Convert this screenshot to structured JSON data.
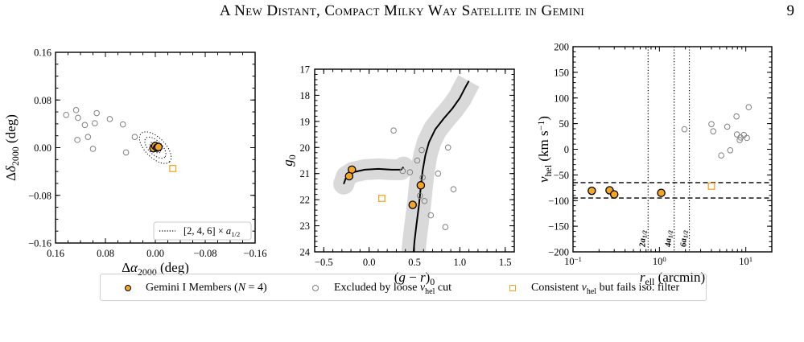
{
  "header": {
    "running_title": "A New Distant, Compact Milky Way Satellite in Gemini",
    "page_number": "9"
  },
  "colors": {
    "member_fill": "#f5a623",
    "member_edge": "#000000",
    "excluded_edge": "#808080",
    "consistent_edge": "#f5a623",
    "isochrone": "#000000",
    "isochrone_band": "#d9d9d9"
  },
  "legend": {
    "members": "Gemini I Members (N = 4)",
    "excluded": "Excluded by loose v_hel cut",
    "consistent": "Consistent v_hel but fails iso. filter"
  },
  "chart_data": [
    {
      "type": "scatter",
      "panel": "spatial",
      "xlabel": "Δα2000 (deg)",
      "ylabel": "Δδ2000 (deg)",
      "xlim": [
        0.16,
        -0.16
      ],
      "ylim": [
        -0.16,
        0.16
      ],
      "xticks": [
        "0.16",
        "0.08",
        "0.00",
        "−0.08",
        "−0.16"
      ],
      "yticks": [
        "0.16",
        "0.08",
        "0.00",
        "−0.08",
        "−0.16"
      ],
      "inner_legend": "[2, 4, 6] × a1/2",
      "ellipses": {
        "semi_major_deg": [
          0.0107,
          0.0214,
          0.0321
        ],
        "axis_ratio": 0.5,
        "position_angle_deg": 135
      },
      "series": [
        {
          "name": "Gemini I Members (N = 4)",
          "marker": "member",
          "points": [
            [
              0.003,
              -0.001
            ],
            [
              0.0,
              0.003
            ],
            [
              -0.003,
              0.0
            ],
            [
              -0.005,
              0.001
            ]
          ]
        },
        {
          "name": "Excluded by loose v_hel cut",
          "marker": "excluded",
          "points": [
            [
              0.143,
              0.055
            ],
            [
              0.127,
              0.063
            ],
            [
              0.124,
              0.05
            ],
            [
              0.113,
              0.038
            ],
            [
              0.108,
              0.018
            ],
            [
              0.125,
              0.013
            ],
            [
              0.097,
              0.041
            ],
            [
              0.094,
              0.058
            ],
            [
              0.073,
              0.048
            ],
            [
              0.052,
              0.039
            ],
            [
              0.047,
              -0.008
            ],
            [
              0.033,
              0.018
            ],
            [
              0.1,
              -0.002
            ]
          ]
        },
        {
          "name": "Consistent v_hel but fails iso. filter",
          "marker": "consistent",
          "points": [
            [
              -0.028,
              -0.035
            ]
          ]
        }
      ]
    },
    {
      "type": "scatter",
      "panel": "cmd",
      "xlabel": "(g − r)0",
      "ylabel": "g0",
      "xlim": [
        -0.6,
        1.6
      ],
      "ylim": [
        24,
        17
      ],
      "xticks": [
        "−0.5",
        "0.0",
        "0.5",
        "1.0",
        "1.5"
      ],
      "yticks": [
        "17",
        "18",
        "19",
        "20",
        "21",
        "22",
        "23",
        "24"
      ],
      "isochrone": {
        "branch": [
          [
            -0.28,
            21.4
          ],
          [
            -0.25,
            21.1
          ],
          [
            -0.18,
            20.95
          ],
          [
            -0.05,
            20.85
          ],
          [
            0.1,
            20.82
          ],
          [
            0.25,
            20.85
          ],
          [
            0.35,
            20.85
          ],
          [
            0.38,
            20.75
          ]
        ],
        "main": [
          [
            0.49,
            24.0
          ],
          [
            0.5,
            23.6
          ],
          [
            0.52,
            23.0
          ],
          [
            0.55,
            22.2
          ],
          [
            0.57,
            21.5
          ],
          [
            0.59,
            20.9
          ],
          [
            0.62,
            20.3
          ],
          [
            0.66,
            19.8
          ],
          [
            0.73,
            19.3
          ],
          [
            0.82,
            18.9
          ],
          [
            0.92,
            18.5
          ],
          [
            1.0,
            18.1
          ],
          [
            1.06,
            17.7
          ],
          [
            1.1,
            17.45
          ]
        ]
      },
      "series": [
        {
          "name": "Gemini I Members (N = 4)",
          "marker": "member",
          "points": [
            [
              -0.19,
              20.85
            ],
            [
              -0.22,
              21.1
            ],
            [
              0.57,
              21.45
            ],
            [
              0.48,
              22.2
            ]
          ]
        },
        {
          "name": "Excluded by loose v_hel cut",
          "marker": "excluded",
          "points": [
            [
              0.27,
              19.35
            ],
            [
              0.58,
              20.1
            ],
            [
              0.87,
              20.0
            ],
            [
              0.53,
              20.5
            ],
            [
              0.37,
              20.9
            ],
            [
              0.45,
              20.95
            ],
            [
              0.59,
              21.15
            ],
            [
              0.76,
              21.0
            ],
            [
              0.56,
              21.85
            ],
            [
              0.61,
              22.05
            ],
            [
              0.93,
              21.6
            ],
            [
              0.68,
              22.6
            ],
            [
              0.84,
              23.05
            ]
          ]
        },
        {
          "name": "Consistent v_hel but fails iso. filter",
          "marker": "consistent",
          "points": [
            [
              0.14,
              21.95
            ]
          ]
        }
      ]
    },
    {
      "type": "scatter",
      "panel": "velocity",
      "xlabel": "r_ell (arcmin)",
      "ylabel": "v_hel (km s−1)",
      "xscale": "log",
      "xlim": [
        0.1,
        20
      ],
      "ylim": [
        -200,
        200
      ],
      "xticks": [
        "10−1",
        "100",
        "101"
      ],
      "yticks": [
        "200",
        "150",
        "100",
        "50",
        "0",
        "−50",
        "−100",
        "−150",
        "−200"
      ],
      "vlines": [
        {
          "x": 0.74,
          "label": "2a1/2"
        },
        {
          "x": 1.48,
          "label": "4a1/2"
        },
        {
          "x": 2.22,
          "label": "6a1/2"
        }
      ],
      "hlines": [
        -65,
        -95
      ],
      "series": [
        {
          "name": "Gemini I Members (N = 4)",
          "marker": "member",
          "points": [
            [
              0.165,
              -81
            ],
            [
              0.265,
              -80
            ],
            [
              0.3,
              -88
            ],
            [
              1.05,
              -85
            ]
          ]
        },
        {
          "name": "Excluded by loose v_hel cut",
          "marker": "excluded",
          "points": [
            [
              1.95,
              39
            ],
            [
              4.0,
              49
            ],
            [
              4.2,
              35
            ],
            [
              5.2,
              -12
            ],
            [
              6.1,
              44
            ],
            [
              6.6,
              -2
            ],
            [
              7.8,
              64
            ],
            [
              7.9,
              29
            ],
            [
              8.5,
              18
            ],
            [
              8.7,
              23
            ],
            [
              9.5,
              28
            ],
            [
              10.3,
              22
            ],
            [
              10.8,
              82
            ]
          ]
        },
        {
          "name": "Consistent v_hel but fails iso. filter",
          "marker": "consistent",
          "points": [
            [
              4.0,
              -72
            ]
          ]
        }
      ]
    }
  ]
}
